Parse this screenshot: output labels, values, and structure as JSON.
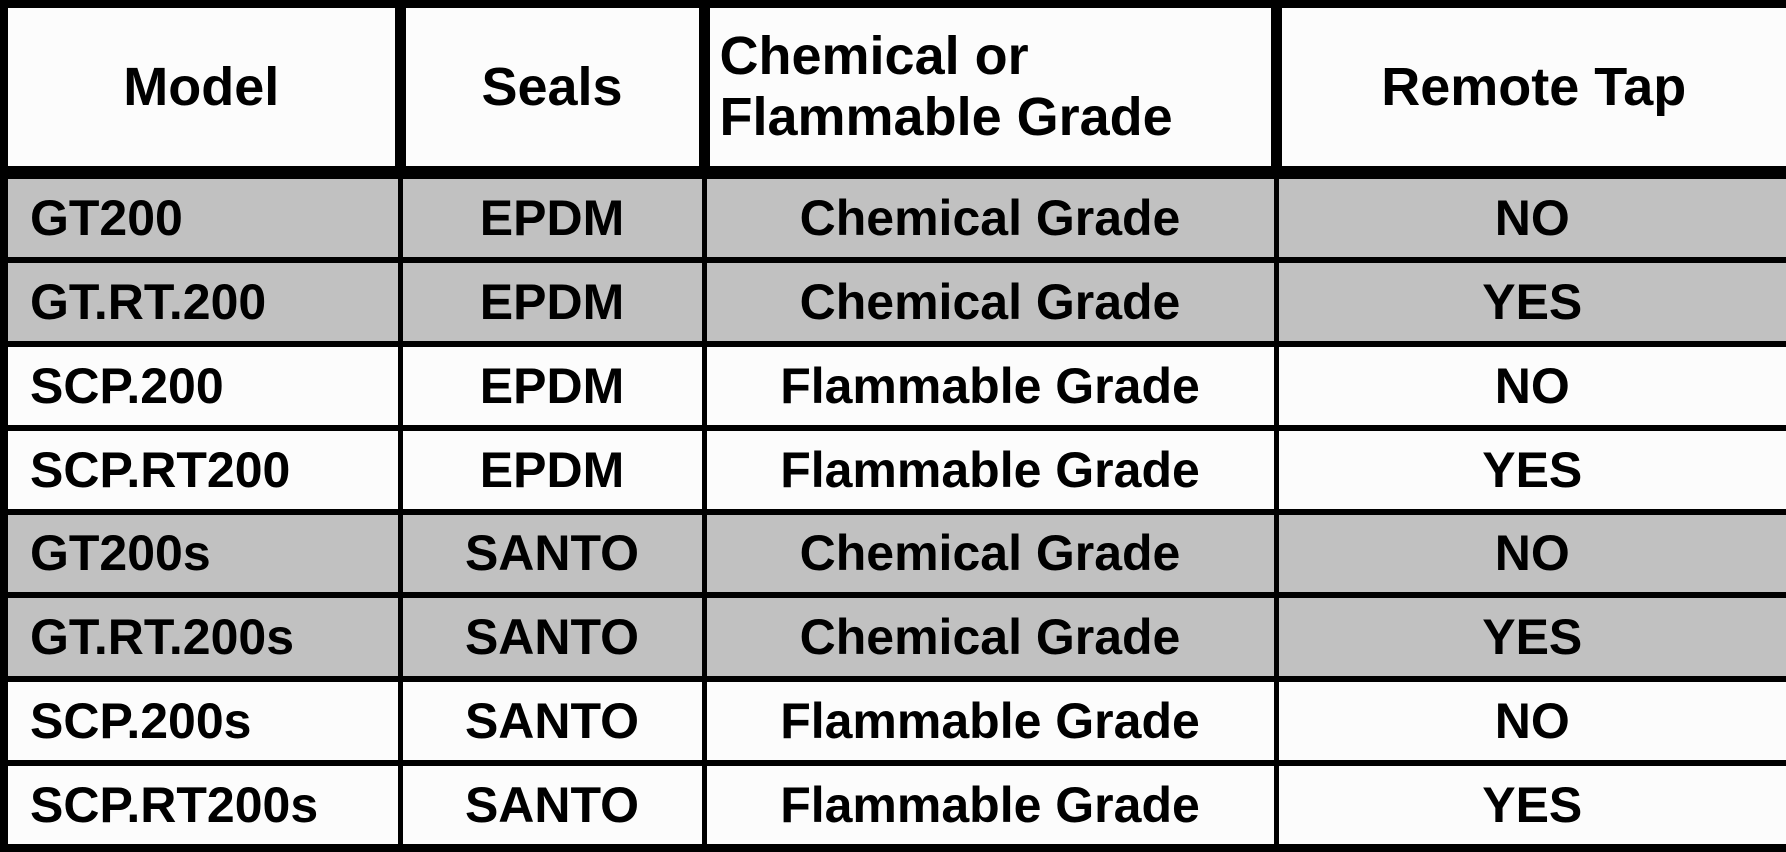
{
  "table": {
    "columns": [
      {
        "label": "Model"
      },
      {
        "label": "Seals"
      },
      {
        "label": "Chemical or\nFlammable Grade"
      },
      {
        "label": "Remote Tap"
      }
    ],
    "rows": [
      {
        "model": "GT200",
        "seals": "EPDM",
        "grade": "Chemical Grade",
        "remote_tap": "NO"
      },
      {
        "model": "GT.RT.200",
        "seals": "EPDM",
        "grade": "Chemical Grade",
        "remote_tap": "YES"
      },
      {
        "model": "SCP.200",
        "seals": "EPDM",
        "grade": "Flammable Grade",
        "remote_tap": "NO"
      },
      {
        "model": "SCP.RT200",
        "seals": "EPDM",
        "grade": "Flammable Grade",
        "remote_tap": "YES"
      },
      {
        "model": "GT200s",
        "seals": "SANTO",
        "grade": "Chemical Grade",
        "remote_tap": "NO"
      },
      {
        "model": "GT.RT.200s",
        "seals": "SANTO",
        "grade": "Chemical Grade",
        "remote_tap": "YES"
      },
      {
        "model": "SCP.200s",
        "seals": "SANTO",
        "grade": "Flammable Grade",
        "remote_tap": "NO"
      },
      {
        "model": "SCP.RT200s",
        "seals": "SANTO",
        "grade": "Flammable Grade",
        "remote_tap": "YES"
      }
    ]
  },
  "colors": {
    "border": "#000000",
    "text": "#000000",
    "row_shaded": "#c1c1c1",
    "row_white": "#fcfcfc",
    "header_bg": "#fcfcfc"
  }
}
